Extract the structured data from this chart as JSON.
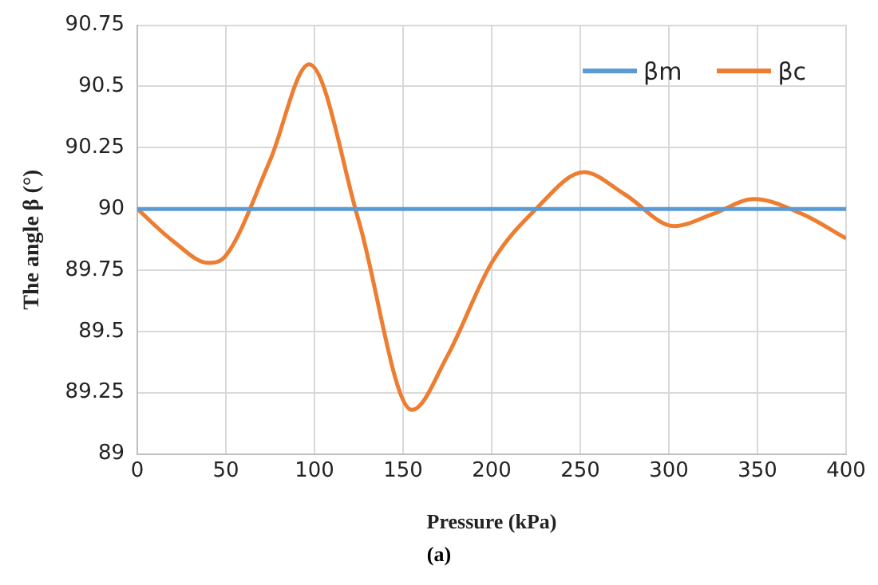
{
  "chart_data": {
    "type": "line",
    "xlabel": "Pressure (kPa)",
    "ylabel": "The angle β (°)",
    "annotations": [
      "(a)"
    ],
    "xlim": [
      0,
      400
    ],
    "xticks": [
      0,
      50,
      100,
      150,
      200,
      250,
      300,
      350,
      400
    ],
    "ylim": [
      89,
      90.75
    ],
    "yticks": [
      89,
      89.25,
      89.5,
      89.75,
      90,
      90.25,
      90.5,
      90.75
    ],
    "grid": true,
    "legend": "top right",
    "marker": "none",
    "line_style": "solid",
    "series": [
      {
        "name": "βm",
        "color": "#5b9bd5",
        "x": [
          0,
          400
        ],
        "values": [
          90,
          90
        ]
      },
      {
        "name": "βc",
        "color": "#ed7d31",
        "x": [
          0,
          20,
          40,
          50,
          75,
          97,
          125,
          155,
          175,
          200,
          225,
          252,
          275,
          303,
          325,
          348,
          375,
          400
        ],
        "values": [
          90,
          89.87,
          89.78,
          89.81,
          90.2,
          90.59,
          89.95,
          89.18,
          89.4,
          89.78,
          90.0,
          90.15,
          90.06,
          89.93,
          89.98,
          90.04,
          89.98,
          89.88
        ]
      }
    ]
  }
}
